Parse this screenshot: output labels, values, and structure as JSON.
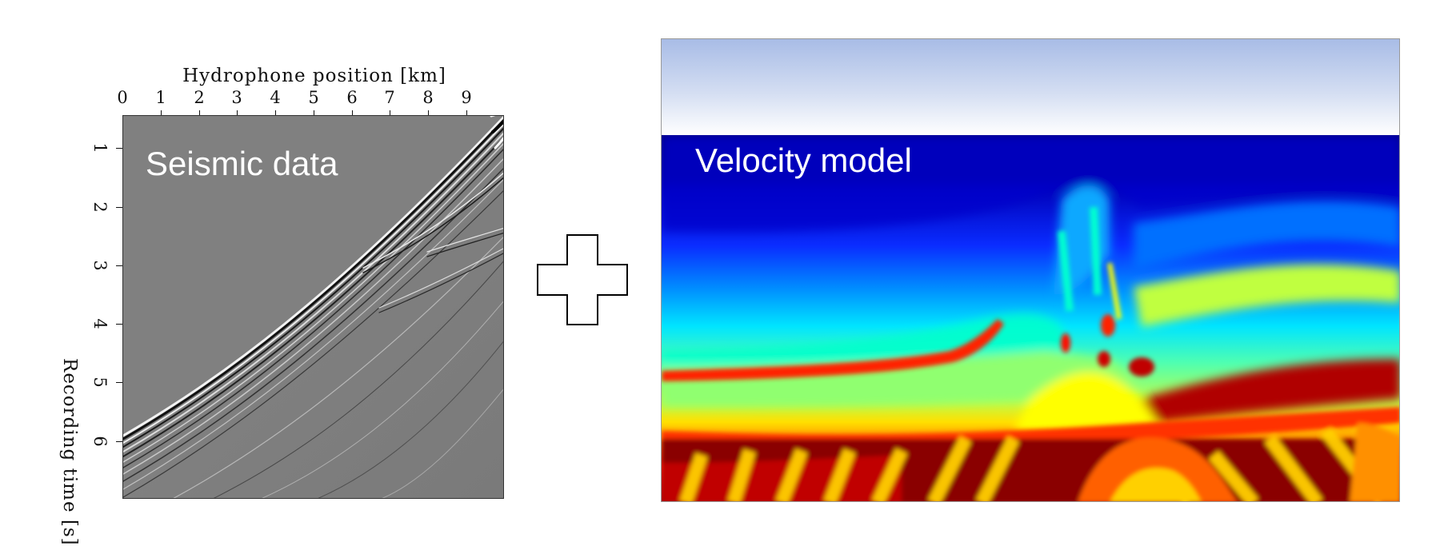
{
  "left_figure": {
    "x_axis_title": "Hydrophone position [km]",
    "x_ticks": [
      "0",
      "1",
      "2",
      "3",
      "4",
      "5",
      "6",
      "7",
      "8",
      "9"
    ],
    "y_axis_title": "Recording time [s]",
    "y_ticks": [
      "1",
      "2",
      "3",
      "4",
      "5",
      "6"
    ],
    "caption": "Seismic data",
    "background_color": "#808080"
  },
  "operator": {
    "symbol_name": "plus-outline-icon"
  },
  "right_figure": {
    "caption": "Velocity model",
    "colormap": [
      "#00007f",
      "#0000ff",
      "#00ffff",
      "#80ff80",
      "#ffff00",
      "#ff0000",
      "#7f0000"
    ]
  }
}
